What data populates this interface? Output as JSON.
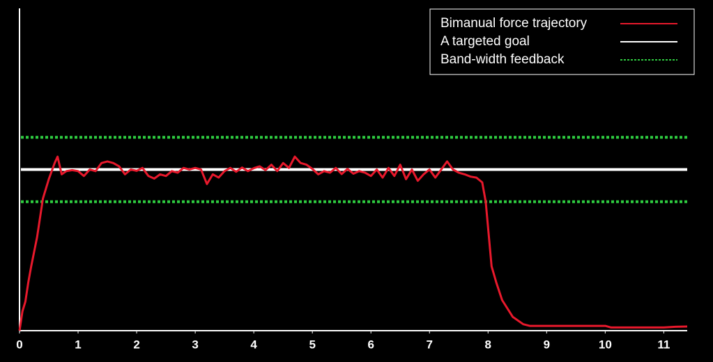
{
  "chart_data": {
    "type": "line",
    "xlim": [
      0,
      11.4
    ],
    "ylim": [
      0,
      100
    ],
    "xticks": [
      0,
      1,
      2,
      3,
      4,
      5,
      6,
      7,
      8,
      9,
      10,
      11
    ],
    "grid": false,
    "legend": "upper right",
    "series": [
      {
        "name": "Bimanual force trajectory",
        "color": "#e8192c",
        "style": "solid",
        "x": [
          0,
          0.05,
          0.1,
          0.15,
          0.2,
          0.3,
          0.4,
          0.5,
          0.6,
          0.65,
          0.72,
          0.8,
          0.9,
          1.0,
          1.1,
          1.2,
          1.3,
          1.4,
          1.5,
          1.6,
          1.7,
          1.8,
          1.9,
          2.0,
          2.1,
          2.2,
          2.3,
          2.4,
          2.5,
          2.6,
          2.7,
          2.8,
          2.9,
          3.0,
          3.1,
          3.2,
          3.3,
          3.4,
          3.5,
          3.6,
          3.7,
          3.8,
          3.9,
          4.0,
          4.1,
          4.2,
          4.3,
          4.4,
          4.5,
          4.6,
          4.7,
          4.8,
          4.9,
          5.0,
          5.1,
          5.2,
          5.3,
          5.4,
          5.5,
          5.6,
          5.7,
          5.8,
          5.9,
          6.0,
          6.1,
          6.2,
          6.3,
          6.4,
          6.5,
          6.6,
          6.7,
          6.8,
          6.9,
          7.0,
          7.1,
          7.2,
          7.3,
          7.4,
          7.5,
          7.6,
          7.7,
          7.8,
          7.9,
          7.96,
          8.06,
          8.14,
          8.24,
          8.42,
          8.6,
          8.71,
          9.0,
          9.5,
          10.0,
          10.1,
          10.5,
          11.0,
          11.2,
          11.4
        ],
        "values": [
          0,
          6,
          9,
          15,
          20,
          29,
          41,
          47,
          52,
          54,
          48.5,
          49.5,
          49.8,
          49.5,
          48,
          50,
          49.5,
          52,
          52.5,
          52,
          51,
          48.5,
          50,
          49.6,
          50.5,
          48,
          47.2,
          48.5,
          48,
          49.5,
          49,
          50.5,
          50,
          50.5,
          50,
          45.5,
          48.5,
          47.5,
          49.5,
          50.5,
          49.3,
          50.6,
          49.5,
          50.4,
          51,
          49.8,
          51.5,
          49.5,
          52,
          50.5,
          54,
          52,
          51.5,
          50.2,
          48.5,
          49.5,
          49,
          50.5,
          48.6,
          50.2,
          48.7,
          49.5,
          49,
          48,
          50,
          47.5,
          50.5,
          48,
          51.5,
          47,
          50,
          46.5,
          48.5,
          50,
          47.5,
          50,
          52.5,
          50,
          49,
          48.5,
          47.8,
          47.5,
          46,
          40,
          20,
          15,
          9.5,
          4.3,
          2,
          1.5,
          1.5,
          1.5,
          1.5,
          1,
          1,
          1,
          1.2,
          1.3
        ]
      },
      {
        "name": "A targeted goal",
        "color": "#ffffff",
        "style": "solid",
        "levels": [
          50
        ]
      },
      {
        "name": "Band-width feedback",
        "color": "#2ecc40",
        "style": "dotted",
        "levels": [
          40,
          60
        ]
      }
    ]
  }
}
